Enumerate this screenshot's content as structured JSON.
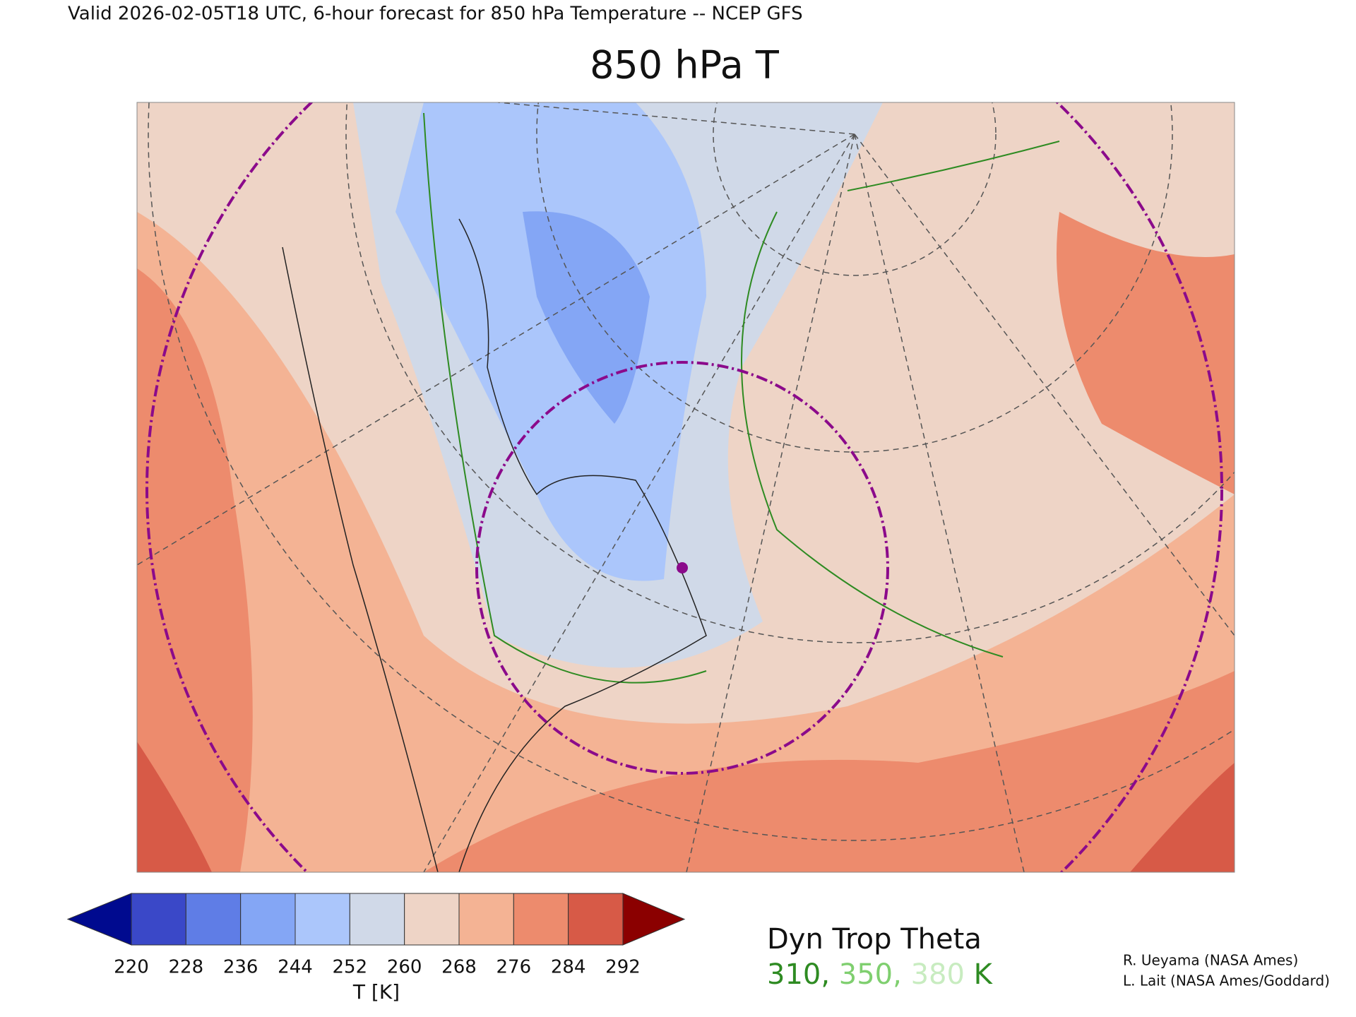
{
  "header": {
    "valid_line": "Valid 2026-02-05T18 UTC, 6-hour forecast for 850 hPa Temperature -- NCEP GFS"
  },
  "title": "850 hPa T",
  "colorbar": {
    "ticks": [
      220,
      228,
      236,
      244,
      252,
      260,
      268,
      276,
      284,
      292
    ],
    "colors": [
      "#000a8f",
      "#3a48c8",
      "#5f7de6",
      "#84a6f5",
      "#abc6fb",
      "#d0d9e8",
      "#eed4c6",
      "#f4b394",
      "#ed8b6d",
      "#d75a47",
      "#8b0000"
    ],
    "label": "T [K]"
  },
  "legend": {
    "title": "Dyn Trop Theta",
    "levels": [
      {
        "text": "310,",
        "color": "#2e8b22"
      },
      {
        "text": "350,",
        "color": "#7fcf6f"
      },
      {
        "text": "380",
        "color": "#c8ecc0"
      }
    ],
    "unit": "K"
  },
  "credits": [
    "R. Ueyama (NASA Ames)",
    "L. Lait (NASA Ames/Goddard)"
  ]
}
